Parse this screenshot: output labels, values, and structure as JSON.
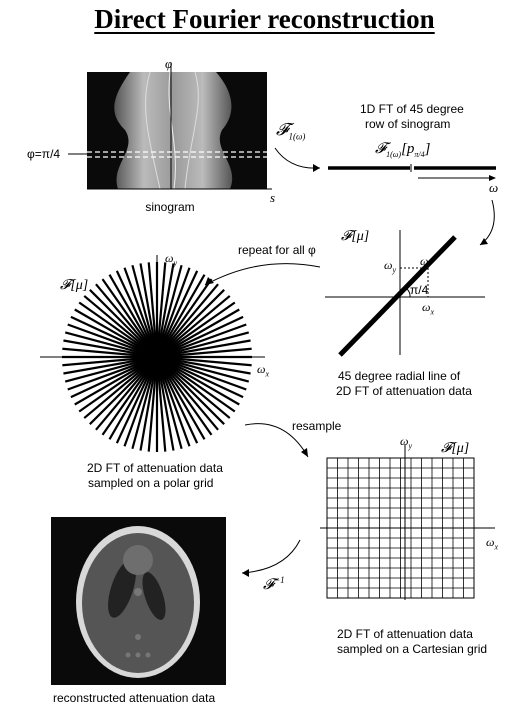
{
  "title": "Direct Fourier reconstruction",
  "sinogram": {
    "axis_phi": "φ",
    "axis_s": "s",
    "row_label": "φ=π/4",
    "caption": "sinogram"
  },
  "step1": {
    "operator": "𝓕",
    "operator_sub": "1(ω)",
    "caption_line1": "1D FT of 45 degree",
    "caption_line2": "row of sinogram",
    "expr_op": "𝓕",
    "expr_sub": "1(ω)",
    "expr_arg": "[p",
    "expr_arg_sub": "π/4",
    "expr_close": "]",
    "axis_omega": "ω"
  },
  "radial": {
    "operator": "𝓕[μ]",
    "omega_y": "ω",
    "omega_y_sub": "y",
    "omega": "ω",
    "angle": "π/4",
    "omega_x": "ω",
    "omega_x_sub": "x",
    "caption_line1": "45 degree radial line of",
    "caption_line2": "2D FT of attenuation data"
  },
  "polar": {
    "repeat_label": "repeat for all  φ",
    "operator": "𝓕[μ]",
    "omega_y": "ω",
    "omega_y_sub": "y",
    "omega_x": "ω",
    "omega_x_sub": "x",
    "caption_line1": "2D FT of attenuation data",
    "caption_line2": "sampled on a polar grid"
  },
  "cartesian": {
    "resample_label": "resample",
    "operator": "𝓕[μ]",
    "omega_y": "ω",
    "omega_y_sub": "y",
    "omega_x": "ω",
    "omega_x_sub": "x",
    "caption_line1": "2D FT of attenuation data",
    "caption_line2": "sampled on a Cartesian grid"
  },
  "reconstruction": {
    "operator": "𝓕",
    "operator_sup": "−1",
    "caption": "reconstructed attenuation data"
  },
  "colors": {
    "ink": "#000000",
    "image_bg": "#0a0a0a",
    "dashed_row": "#ffffff"
  }
}
